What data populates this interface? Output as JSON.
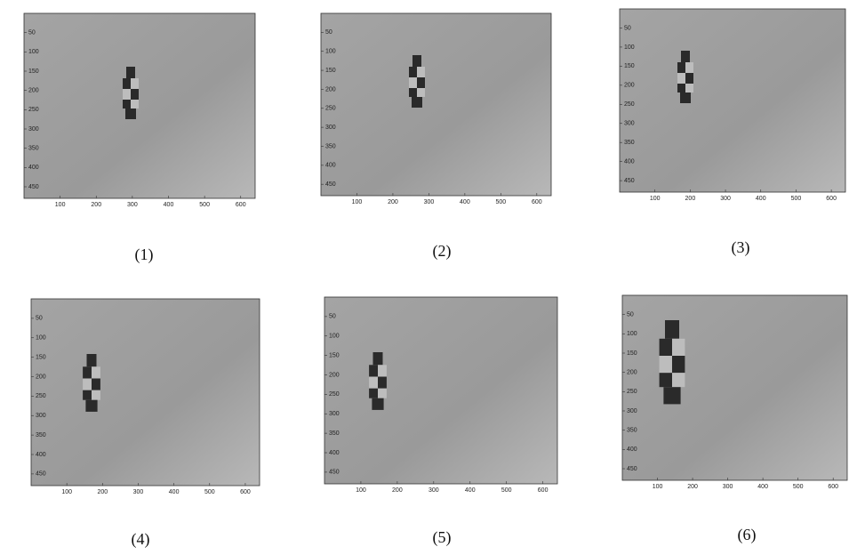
{
  "chart_data": [
    {
      "type": "image",
      "title": "(1)",
      "xlim": [
        0,
        640
      ],
      "ylim": [
        480,
        0
      ],
      "xticks": [
        100,
        200,
        300,
        400,
        500,
        600
      ],
      "yticks": [
        50,
        100,
        150,
        200,
        250,
        300,
        350,
        400,
        450
      ]
    },
    {
      "type": "image",
      "title": "(2)",
      "xlim": [
        0,
        640
      ],
      "ylim": [
        480,
        0
      ],
      "xticks": [
        100,
        200,
        300,
        400,
        500,
        600
      ],
      "yticks": [
        50,
        100,
        150,
        200,
        250,
        300,
        350,
        400,
        450
      ]
    },
    {
      "type": "image",
      "title": "(3)",
      "xlim": [
        0,
        640
      ],
      "ylim": [
        480,
        0
      ],
      "xticks": [
        100,
        200,
        300,
        400,
        500,
        600
      ],
      "yticks": [
        50,
        100,
        150,
        200,
        250,
        300,
        350,
        400,
        450
      ]
    },
    {
      "type": "image",
      "title": "(4)",
      "xlim": [
        0,
        640
      ],
      "ylim": [
        480,
        0
      ],
      "xticks": [
        100,
        200,
        300,
        400,
        500,
        600
      ],
      "yticks": [
        50,
        100,
        150,
        200,
        250,
        300,
        350,
        400,
        450
      ]
    },
    {
      "type": "image",
      "title": "(5)",
      "xlim": [
        0,
        640
      ],
      "ylim": [
        480,
        0
      ],
      "xticks": [
        100,
        200,
        300,
        400,
        500,
        600
      ],
      "yticks": [
        50,
        100,
        150,
        200,
        250,
        300,
        350,
        400,
        450
      ]
    },
    {
      "type": "image",
      "title": "(6)",
      "xlim": [
        0,
        640
      ],
      "ylim": [
        480,
        0
      ],
      "xticks": [
        100,
        200,
        300,
        400,
        500,
        600
      ],
      "yticks": [
        50,
        100,
        150,
        200,
        250,
        300,
        350,
        400,
        450
      ]
    }
  ]
}
